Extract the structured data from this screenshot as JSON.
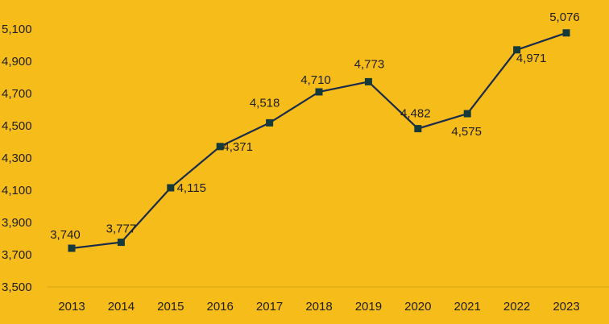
{
  "chart_data": {
    "type": "line",
    "title": "",
    "xlabel": "",
    "ylabel": "",
    "x": [
      "2013",
      "2014",
      "2015",
      "2016",
      "2017",
      "2018",
      "2019",
      "2020",
      "2021",
      "2022",
      "2023"
    ],
    "values": [
      3740,
      3777,
      4115,
      4371,
      4518,
      4710,
      4773,
      4482,
      4575,
      4971,
      5076
    ],
    "value_labels": [
      "3,740",
      "3,777",
      "4,115",
      "4,371",
      "4,518",
      "4,710",
      "4,773",
      "4,482",
      "4,575",
      "4,971",
      "5,076"
    ],
    "y_ticks": [
      3500,
      3700,
      3900,
      4100,
      4300,
      4500,
      4700,
      4900,
      5100
    ],
    "y_tick_labels": [
      "3,500",
      "3,700",
      "3,900",
      "4,100",
      "4,300",
      "4,500",
      "4,700",
      "4,900",
      "5,100"
    ],
    "ylim": [
      3500,
      5200
    ],
    "grid": false,
    "legend": "none",
    "marker": "square",
    "colors": {
      "background": "#F6BC1A",
      "line": "#1B2B4B",
      "marker": "#163A3A",
      "axis": "#D9A514",
      "text": "#1f1f1f"
    }
  }
}
